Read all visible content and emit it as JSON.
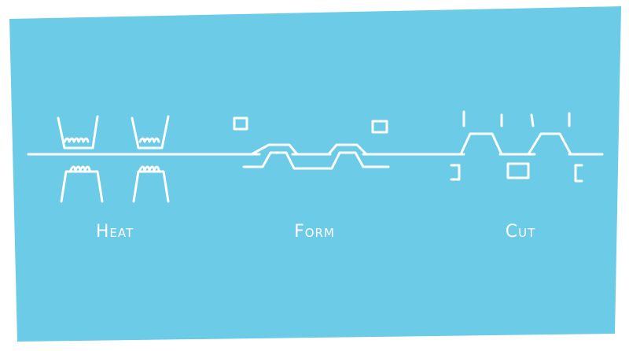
{
  "stages": [
    {
      "id": "heat",
      "label": "Heat"
    },
    {
      "id": "form",
      "label": "Form"
    },
    {
      "id": "cut",
      "label": "Cut"
    }
  ],
  "colors": {
    "background": "#6ccbe6",
    "ink": "#ffffff"
  },
  "icons": {
    "heater": "heater-icon",
    "mold": "mold-icon",
    "cutter": "cutter-blade-icon"
  }
}
